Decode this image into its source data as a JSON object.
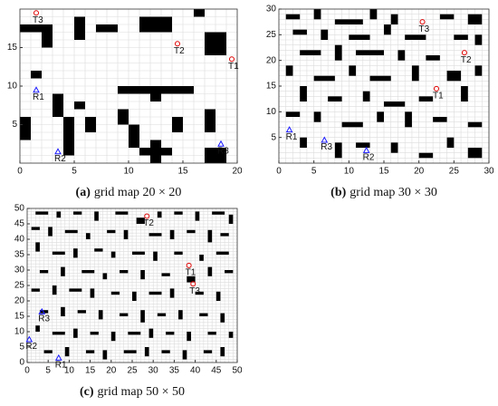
{
  "chart_data": [
    {
      "type": "scatter",
      "label": "(a)",
      "caption": "grid map 20 × 20",
      "xlim": [
        0,
        20
      ],
      "ylim": [
        0,
        20
      ],
      "xticks": [
        0,
        5,
        10,
        15,
        20
      ],
      "yticks": [
        5,
        10,
        15
      ],
      "obstacle_color": "#000000",
      "target_color": "#e00000",
      "robot_color": "#1a1aff",
      "obstacles": [
        [
          0,
          17,
          3,
          1
        ],
        [
          2,
          15,
          1,
          2
        ],
        [
          5,
          16,
          1,
          3
        ],
        [
          7,
          17,
          2,
          1
        ],
        [
          11,
          17,
          3,
          2
        ],
        [
          16,
          19,
          1,
          1
        ],
        [
          17,
          14,
          2,
          3
        ],
        [
          1,
          11,
          1,
          1
        ],
        [
          3,
          6,
          1,
          3
        ],
        [
          9,
          9,
          7,
          1
        ],
        [
          12,
          8,
          1,
          1
        ],
        [
          5,
          7,
          1,
          1
        ],
        [
          0,
          3,
          1,
          3
        ],
        [
          4,
          1,
          1,
          5
        ],
        [
          6,
          4,
          1,
          2
        ],
        [
          9,
          5,
          1,
          2
        ],
        [
          10,
          2,
          1,
          3
        ],
        [
          12,
          0,
          1,
          3
        ],
        [
          11,
          1,
          3,
          1
        ],
        [
          17,
          4,
          1,
          3
        ],
        [
          17,
          0,
          2,
          2
        ],
        [
          14,
          4,
          1,
          2
        ]
      ],
      "points": [
        {
          "name": "T3",
          "kind": "target",
          "x": 1.5,
          "y": 19.5
        },
        {
          "name": "T2",
          "kind": "target",
          "x": 14.5,
          "y": 15.5
        },
        {
          "name": "T1",
          "kind": "target",
          "x": 19.5,
          "y": 13.5
        },
        {
          "name": "R1",
          "kind": "robot",
          "x": 1.5,
          "y": 9.5
        },
        {
          "name": "R2",
          "kind": "robot",
          "x": 3.5,
          "y": 1.5
        },
        {
          "name": "R3",
          "kind": "robot",
          "x": 18.5,
          "y": 2.5
        }
      ]
    },
    {
      "type": "scatter",
      "label": "(b)",
      "caption": "grid map 30 × 30",
      "xlim": [
        0,
        30
      ],
      "ylim": [
        0,
        30
      ],
      "xticks": [
        0,
        5,
        10,
        15,
        20,
        25,
        30
      ],
      "yticks": [
        5,
        10,
        15,
        20,
        25,
        30
      ],
      "obstacle_color": "#000000",
      "target_color": "#e00000",
      "robot_color": "#1a1aff",
      "obstacles": [
        [
          1,
          28,
          2,
          1
        ],
        [
          5,
          28,
          1,
          2
        ],
        [
          8,
          27,
          4,
          1
        ],
        [
          13,
          28,
          1,
          2
        ],
        [
          16,
          27,
          1,
          2
        ],
        [
          23,
          28,
          2,
          1
        ],
        [
          27,
          27,
          2,
          2
        ],
        [
          2,
          25,
          2,
          1
        ],
        [
          6,
          24,
          1,
          2
        ],
        [
          10,
          24,
          3,
          1
        ],
        [
          15,
          25,
          1,
          2
        ],
        [
          18,
          24,
          3,
          1
        ],
        [
          25,
          24,
          2,
          1
        ],
        [
          28,
          23,
          1,
          2
        ],
        [
          3,
          21,
          3,
          1
        ],
        [
          8,
          20,
          1,
          3
        ],
        [
          11,
          21,
          4,
          1
        ],
        [
          17,
          20,
          1,
          2
        ],
        [
          21,
          20,
          2,
          1
        ],
        [
          1,
          17,
          1,
          2
        ],
        [
          5,
          16,
          3,
          1
        ],
        [
          10,
          17,
          1,
          2
        ],
        [
          13,
          16,
          3,
          1
        ],
        [
          19,
          16,
          1,
          3
        ],
        [
          24,
          16,
          2,
          2
        ],
        [
          28,
          17,
          1,
          2
        ],
        [
          3,
          12,
          1,
          3
        ],
        [
          7,
          12,
          2,
          1
        ],
        [
          12,
          12,
          1,
          2
        ],
        [
          15,
          11,
          3,
          1
        ],
        [
          20,
          12,
          2,
          1
        ],
        [
          26,
          12,
          1,
          3
        ],
        [
          1,
          9,
          2,
          1
        ],
        [
          5,
          8,
          1,
          2
        ],
        [
          9,
          7,
          3,
          1
        ],
        [
          14,
          8,
          1,
          2
        ],
        [
          18,
          7,
          1,
          3
        ],
        [
          22,
          8,
          2,
          1
        ],
        [
          27,
          7,
          2,
          1
        ],
        [
          3,
          3,
          1,
          2
        ],
        [
          8,
          1,
          1,
          3
        ],
        [
          11,
          3,
          2,
          1
        ],
        [
          16,
          2,
          1,
          2
        ],
        [
          20,
          1,
          2,
          1
        ],
        [
          24,
          3,
          1,
          2
        ],
        [
          27,
          1,
          2,
          2
        ]
      ],
      "points": [
        {
          "name": "T3",
          "kind": "target",
          "x": 20.5,
          "y": 27.5
        },
        {
          "name": "T2",
          "kind": "target",
          "x": 26.5,
          "y": 21.5
        },
        {
          "name": "T1",
          "kind": "target",
          "x": 22.5,
          "y": 14.5
        },
        {
          "name": "R1",
          "kind": "robot",
          "x": 1.5,
          "y": 6.5
        },
        {
          "name": "R3",
          "kind": "robot",
          "x": 6.5,
          "y": 4.5
        },
        {
          "name": "R2",
          "kind": "robot",
          "x": 12.5,
          "y": 2.5
        }
      ]
    },
    {
      "type": "scatter",
      "label": "(c)",
      "caption": "grid map 50 × 50",
      "xlim": [
        0,
        50
      ],
      "ylim": [
        0,
        50
      ],
      "xticks": [
        0,
        5,
        10,
        15,
        20,
        25,
        30,
        35,
        40,
        45,
        50
      ],
      "yticks": [
        0,
        5,
        10,
        15,
        20,
        25,
        30,
        35,
        40,
        45,
        50
      ],
      "obstacle_color": "#000000",
      "target_color": "#e00000",
      "robot_color": "#1a1aff",
      "obstacles": [
        [
          2,
          48,
          3,
          1
        ],
        [
          7,
          47,
          1,
          2
        ],
        [
          11,
          48,
          2,
          1
        ],
        [
          16,
          46,
          1,
          3
        ],
        [
          21,
          48,
          3,
          1
        ],
        [
          26,
          45,
          2,
          2
        ],
        [
          31,
          47,
          1,
          2
        ],
        [
          35,
          48,
          2,
          1
        ],
        [
          40,
          46,
          1,
          3
        ],
        [
          44,
          48,
          3,
          1
        ],
        [
          48,
          45,
          1,
          3
        ],
        [
          1,
          43,
          2,
          1
        ],
        [
          5,
          41,
          1,
          3
        ],
        [
          9,
          42,
          3,
          1
        ],
        [
          14,
          40,
          1,
          2
        ],
        [
          19,
          42,
          2,
          1
        ],
        [
          23,
          40,
          1,
          3
        ],
        [
          29,
          41,
          3,
          1
        ],
        [
          34,
          40,
          1,
          3
        ],
        [
          38,
          42,
          2,
          1
        ],
        [
          43,
          39,
          1,
          4
        ],
        [
          46,
          41,
          2,
          1
        ],
        [
          2,
          36,
          1,
          3
        ],
        [
          6,
          35,
          3,
          1
        ],
        [
          11,
          34,
          1,
          3
        ],
        [
          16,
          36,
          2,
          1
        ],
        [
          20,
          34,
          1,
          2
        ],
        [
          25,
          35,
          3,
          1
        ],
        [
          30,
          33,
          1,
          3
        ],
        [
          35,
          35,
          2,
          1
        ],
        [
          41,
          33,
          1,
          2
        ],
        [
          45,
          35,
          3,
          1
        ],
        [
          3,
          29,
          2,
          1
        ],
        [
          8,
          28,
          1,
          3
        ],
        [
          13,
          29,
          3,
          1
        ],
        [
          18,
          27,
          1,
          2
        ],
        [
          22,
          29,
          2,
          1
        ],
        [
          27,
          27,
          1,
          3
        ],
        [
          32,
          28,
          2,
          1
        ],
        [
          38,
          26,
          2,
          2
        ],
        [
          43,
          28,
          1,
          3
        ],
        [
          47,
          29,
          2,
          1
        ],
        [
          1,
          23,
          2,
          1
        ],
        [
          6,
          22,
          1,
          3
        ],
        [
          10,
          23,
          3,
          1
        ],
        [
          15,
          21,
          1,
          3
        ],
        [
          20,
          22,
          2,
          1
        ],
        [
          25,
          20,
          1,
          3
        ],
        [
          29,
          22,
          3,
          1
        ],
        [
          34,
          21,
          1,
          3
        ],
        [
          40,
          22,
          2,
          1
        ],
        [
          45,
          20,
          1,
          3
        ],
        [
          3,
          16,
          2,
          1
        ],
        [
          8,
          15,
          1,
          3
        ],
        [
          12,
          16,
          2,
          1
        ],
        [
          17,
          14,
          1,
          3
        ],
        [
          22,
          15,
          2,
          1
        ],
        [
          27,
          13,
          1,
          4
        ],
        [
          31,
          15,
          2,
          1
        ],
        [
          36,
          14,
          1,
          3
        ],
        [
          41,
          15,
          2,
          1
        ],
        [
          46,
          13,
          1,
          3
        ],
        [
          2,
          10,
          1,
          2
        ],
        [
          6,
          9,
          3,
          1
        ],
        [
          11,
          8,
          1,
          3
        ],
        [
          15,
          9,
          2,
          1
        ],
        [
          20,
          7,
          1,
          3
        ],
        [
          24,
          9,
          3,
          1
        ],
        [
          29,
          8,
          1,
          3
        ],
        [
          33,
          9,
          2,
          1
        ],
        [
          38,
          7,
          1,
          3
        ],
        [
          43,
          9,
          2,
          1
        ],
        [
          48,
          8,
          1,
          2
        ],
        [
          4,
          3,
          2,
          1
        ],
        [
          9,
          2,
          1,
          3
        ],
        [
          14,
          3,
          2,
          1
        ],
        [
          18,
          1,
          1,
          3
        ],
        [
          23,
          3,
          3,
          1
        ],
        [
          28,
          2,
          1,
          3
        ],
        [
          32,
          3,
          2,
          1
        ],
        [
          37,
          1,
          1,
          3
        ],
        [
          42,
          3,
          2,
          1
        ],
        [
          46,
          2,
          1,
          3
        ]
      ],
      "points": [
        {
          "name": "T2",
          "kind": "target",
          "x": 28.5,
          "y": 47.5
        },
        {
          "name": "T1",
          "kind": "target",
          "x": 38.5,
          "y": 31.5
        },
        {
          "name": "T3",
          "kind": "target",
          "x": 39.5,
          "y": 25.5
        },
        {
          "name": "R3",
          "kind": "robot",
          "x": 3.5,
          "y": 16.5
        },
        {
          "name": "R2",
          "kind": "robot",
          "x": 0.5,
          "y": 7.5
        },
        {
          "name": "R1",
          "kind": "robot",
          "x": 7.5,
          "y": 1.5
        }
      ]
    }
  ]
}
